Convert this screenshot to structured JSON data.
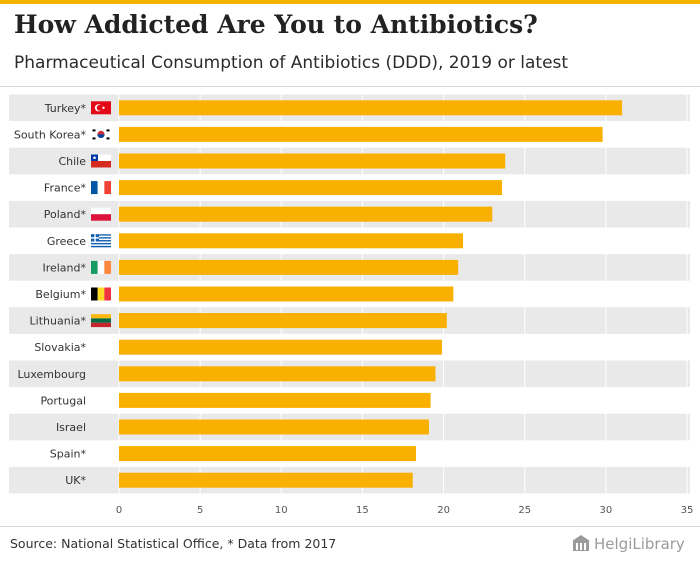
{
  "title": "How Addicted Are You to Antibiotics?",
  "subtitle": "Pharmaceutical Consumption of Antibiotics (DDD), 2019 or latest",
  "source": "Source: National Statistical Office, * Data from 2017",
  "brand": "HelgiLibrary",
  "colors": {
    "bar": "#F9B000",
    "band": "#E9E9E9",
    "accent": "#F5B400"
  },
  "chart_data": {
    "type": "bar",
    "orientation": "horizontal",
    "categories": [
      "Turkey*",
      "South Korea*",
      "Chile",
      "France*",
      "Poland*",
      "Greece",
      "Ireland*",
      "Belgium*",
      "Lithuania*",
      "Slovakia*",
      "Luxembourg",
      "Portugal",
      "Israel",
      "Spain*",
      "UK*"
    ],
    "flags": [
      "turkey-flag-icon",
      "south-korea-flag-icon",
      "chile-flag-icon",
      "france-flag-icon",
      "poland-flag-icon",
      "greece-flag-icon",
      "ireland-flag-icon",
      "belgium-flag-icon",
      "lithuania-flag-icon",
      null,
      null,
      null,
      null,
      null,
      null
    ],
    "values": [
      31.0,
      29.8,
      23.8,
      23.6,
      23.0,
      21.2,
      20.9,
      20.6,
      20.2,
      19.9,
      19.5,
      19.2,
      19.1,
      18.3,
      18.1
    ],
    "xlim": [
      0,
      35
    ],
    "xticks": [
      0,
      5,
      10,
      15,
      20,
      25,
      30,
      35
    ],
    "xlabel": "",
    "ylabel": "",
    "grid": true,
    "legend": "none"
  }
}
